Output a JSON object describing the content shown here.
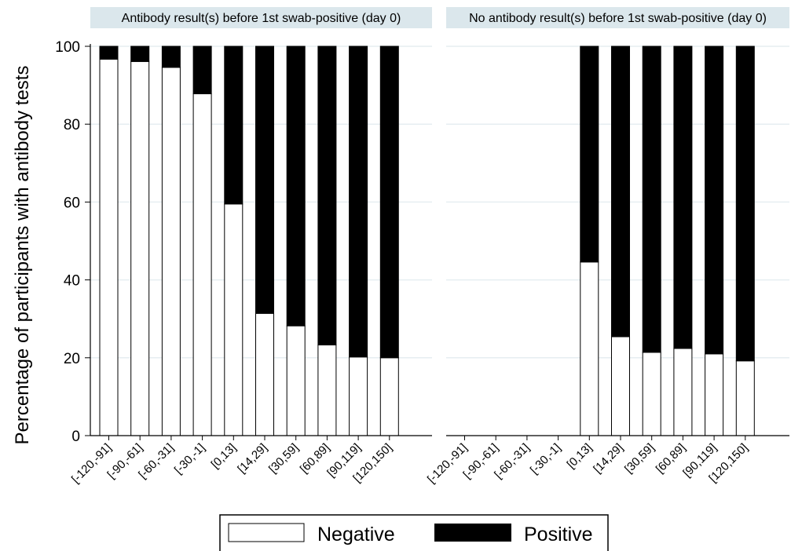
{
  "chart_data": {
    "type": "bar",
    "stacked": true,
    "ylabel": "Percentage of participants with antibody tests",
    "ylim": [
      0,
      100
    ],
    "yticks": [
      0,
      20,
      40,
      60,
      80,
      100
    ],
    "grid": true,
    "legend_position": "bottom",
    "categories": [
      "[-120,-91]",
      "[-90,-61]",
      "[-60,-31]",
      "[-30,-1]",
      "[0,13]",
      "[14,29]",
      "[30,59]",
      "[60,89]",
      "[90,119]",
      "[120,150]"
    ],
    "series": [
      {
        "name": "Negative",
        "color": "#ffffff"
      },
      {
        "name": "Positive",
        "color": "#000000"
      }
    ],
    "panels": [
      {
        "title": "Antibody result(s) before 1st swab-positive (day 0)",
        "negative": [
          96.7,
          96.1,
          94.6,
          87.8,
          59.5,
          31.4,
          28.2,
          23.3,
          20.2,
          20.0
        ],
        "positive": [
          3.3,
          3.9,
          5.4,
          12.2,
          40.5,
          68.6,
          71.8,
          76.7,
          79.8,
          80.0
        ]
      },
      {
        "title": "No antibody result(s) before 1st swab-positive (day 0)",
        "negative": [
          null,
          null,
          null,
          null,
          44.6,
          25.4,
          21.4,
          22.4,
          21.0,
          19.2
        ],
        "positive": [
          null,
          null,
          null,
          null,
          55.4,
          74.6,
          78.6,
          77.6,
          79.0,
          80.8
        ]
      }
    ]
  }
}
